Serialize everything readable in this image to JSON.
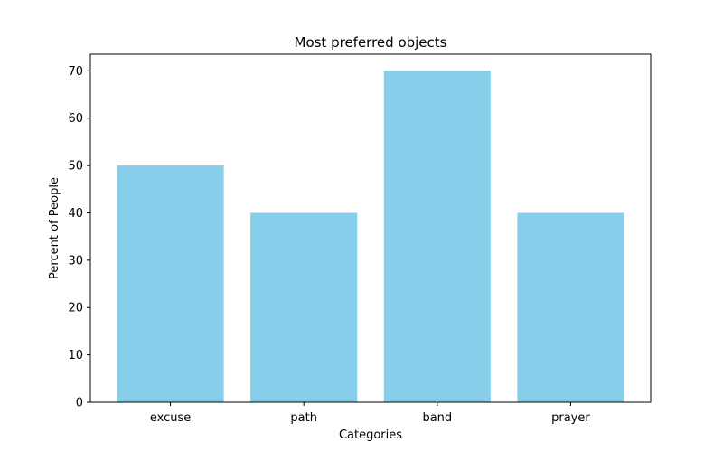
{
  "chart_data": {
    "type": "bar",
    "title": "Most preferred objects",
    "xlabel": "Categories",
    "ylabel": "Percent of People",
    "categories": [
      "excuse",
      "path",
      "band",
      "prayer"
    ],
    "values": [
      50,
      40,
      70,
      40
    ],
    "ylim": [
      0,
      73.5
    ],
    "yticks": [
      0,
      10,
      20,
      30,
      40,
      50,
      60,
      70
    ],
    "grid": false,
    "legend": "none",
    "bar_color": "#87ceeb"
  }
}
